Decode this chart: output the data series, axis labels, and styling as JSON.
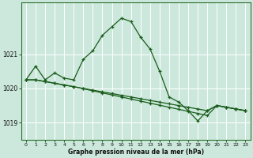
{
  "xlabel": "Graphe pression niveau de la mer (hPa)",
  "bg_color": "#cce8dd",
  "grid_color": "#ffffff",
  "line_color": "#1a5c1a",
  "hours": [
    0,
    1,
    2,
    3,
    4,
    5,
    6,
    7,
    8,
    9,
    10,
    11,
    12,
    13,
    14,
    15,
    16,
    17,
    18,
    19,
    20,
    21,
    22,
    23
  ],
  "series1": [
    1020.25,
    1020.65,
    1020.25,
    1020.45,
    1020.3,
    1020.25,
    1020.85,
    1021.1,
    1021.55,
    1021.8,
    1022.05,
    1021.95,
    1021.5,
    1021.15,
    1020.5,
    1019.75,
    1019.6,
    1019.35,
    1019.05,
    1019.35,
    1019.5,
    1019.45,
    1019.4,
    1019.35
  ],
  "series2": [
    1020.25,
    1020.25,
    1020.2,
    1020.15,
    1020.1,
    1020.05,
    1020.0,
    1019.95,
    1019.9,
    1019.85,
    1019.8,
    1019.75,
    1019.7,
    1019.65,
    1019.6,
    1019.55,
    1019.5,
    1019.45,
    1019.4,
    1019.35,
    1019.5,
    1019.45,
    1019.4,
    1019.35
  ],
  "series3": [
    1020.25,
    1020.25,
    1020.2,
    1020.15,
    1020.1,
    1020.05,
    1019.99,
    1019.93,
    1019.87,
    1019.81,
    1019.75,
    1019.69,
    1019.63,
    1019.57,
    1019.51,
    1019.45,
    1019.39,
    1019.33,
    1019.27,
    1019.21,
    1019.5,
    1019.45,
    1019.4,
    1019.35
  ],
  "ylim": [
    1018.5,
    1022.5
  ],
  "yticks": [
    1019,
    1020,
    1021
  ],
  "xticks": [
    0,
    1,
    2,
    3,
    4,
    5,
    6,
    7,
    8,
    9,
    10,
    11,
    12,
    13,
    14,
    15,
    16,
    17,
    18,
    19,
    20,
    21,
    22,
    23
  ]
}
